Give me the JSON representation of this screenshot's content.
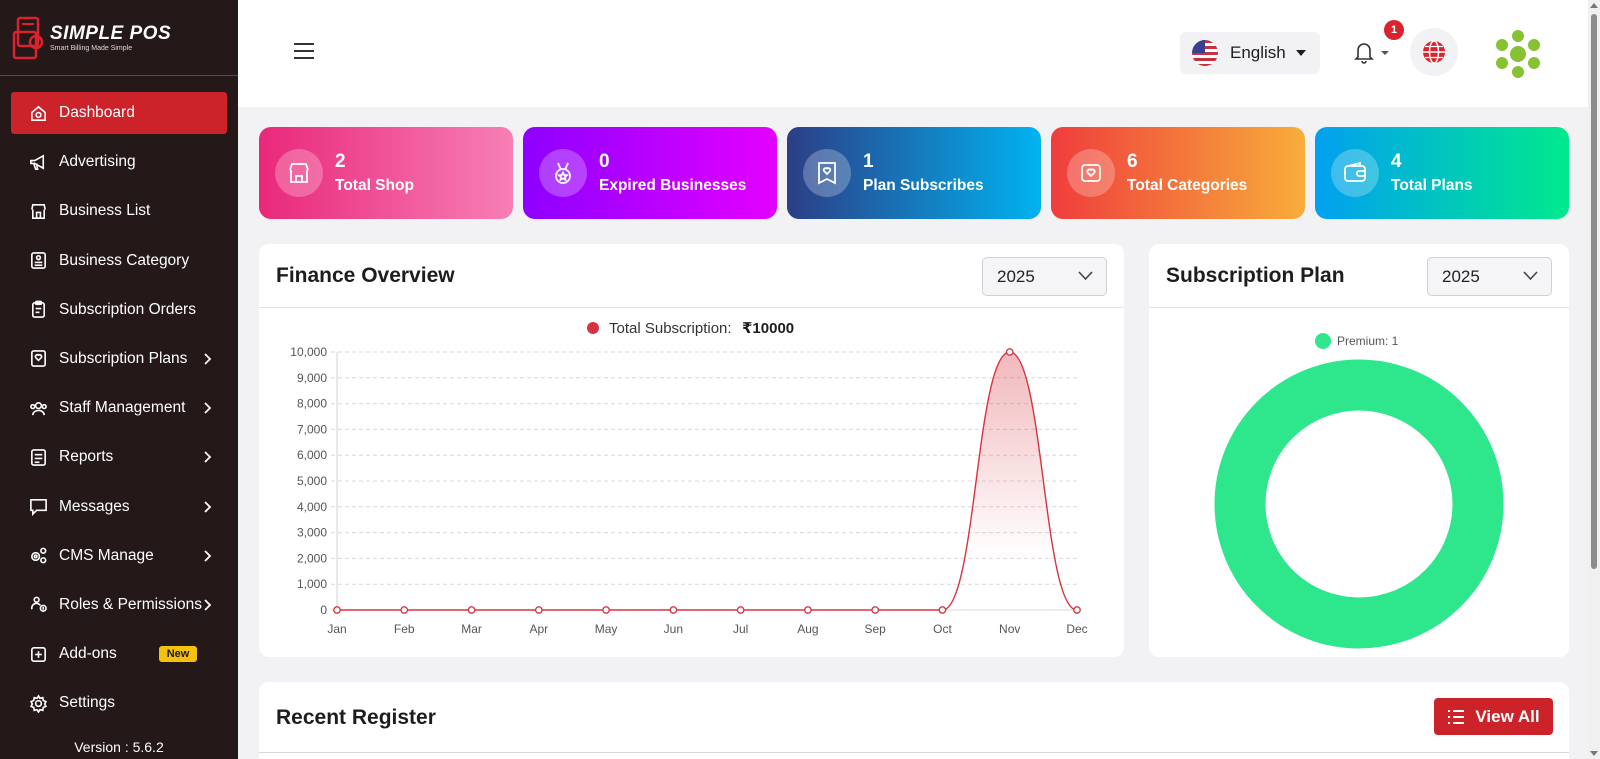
{
  "brand": {
    "name": "SIMPLE POS",
    "tagline": "Smart Billing Made Simple"
  },
  "sidebar": {
    "items": [
      {
        "label": "Dashboard",
        "icon": "home-icon",
        "active": true
      },
      {
        "label": "Advertising",
        "icon": "megaphone-icon"
      },
      {
        "label": "Business List",
        "icon": "store-icon"
      },
      {
        "label": "Business Category",
        "icon": "category-icon"
      },
      {
        "label": "Subscription Orders",
        "icon": "clipboard-icon"
      },
      {
        "label": "Subscription Plans",
        "icon": "badge-icon",
        "has_children": true
      },
      {
        "label": "Staff Management",
        "icon": "users-icon",
        "has_children": true
      },
      {
        "label": "Reports",
        "icon": "report-icon",
        "has_children": true
      },
      {
        "label": "Messages",
        "icon": "message-icon",
        "has_children": true
      },
      {
        "label": "CMS Manage",
        "icon": "gears-icon",
        "has_children": true
      },
      {
        "label": "Roles & Permissions",
        "icon": "roles-icon",
        "has_children": true
      },
      {
        "label": "Add-ons",
        "icon": "plus-square-icon",
        "badge": "New"
      },
      {
        "label": "Settings",
        "icon": "gear-icon"
      }
    ],
    "version": "Version : 5.6.2"
  },
  "header": {
    "language": "English",
    "notification_count": "1"
  },
  "stats": [
    {
      "value": "2",
      "label": "Total Shop",
      "gradient": [
        "#e9287a",
        "#f77fb5"
      ]
    },
    {
      "value": "0",
      "label": "Expired Businesses",
      "gradient": [
        "#8d00ff",
        "#e400ff"
      ]
    },
    {
      "value": "1",
      "label": "Plan Subscribes",
      "gradient": [
        "#2c3e86",
        "#00b3f0"
      ]
    },
    {
      "value": "6",
      "label": "Total Categories",
      "gradient": [
        "#ef3d3d",
        "#f8ad3a"
      ]
    },
    {
      "value": "4",
      "label": "Total Plans",
      "gradient": [
        "#02a0f0",
        "#00e98d"
      ]
    }
  ],
  "finance": {
    "title": "Finance Overview",
    "year": "2025",
    "chart_data": {
      "type": "area",
      "legend": "Total Subscription: ₹10000",
      "legend_prefix": "Total Subscription:",
      "legend_value": "₹10000",
      "categories": [
        "Jan",
        "Feb",
        "Mar",
        "Apr",
        "May",
        "Jun",
        "Jul",
        "Aug",
        "Sep",
        "Oct",
        "Nov",
        "Dec"
      ],
      "values": [
        0,
        0,
        0,
        0,
        0,
        0,
        0,
        0,
        0,
        0,
        10000,
        0
      ],
      "ylim": [
        0,
        10000
      ],
      "yticks": [
        "10,000",
        "9,000",
        "8,000",
        "7,000",
        "6,000",
        "5,000",
        "4,000",
        "3,000",
        "2,000",
        "1,000",
        "0"
      ],
      "color": "#d63440",
      "grid": true,
      "legend_position": "top-center"
    }
  },
  "subscription": {
    "title": "Subscription Plan",
    "year": "2025",
    "chart_data": {
      "type": "pie",
      "donut": true,
      "labels": [
        "Premium"
      ],
      "values": [
        1
      ],
      "legend_label": "Premium: 1",
      "colors": [
        "#2ee68c"
      ],
      "legend_position": "top"
    }
  },
  "recent": {
    "title": "Recent Register",
    "button": "View All"
  }
}
